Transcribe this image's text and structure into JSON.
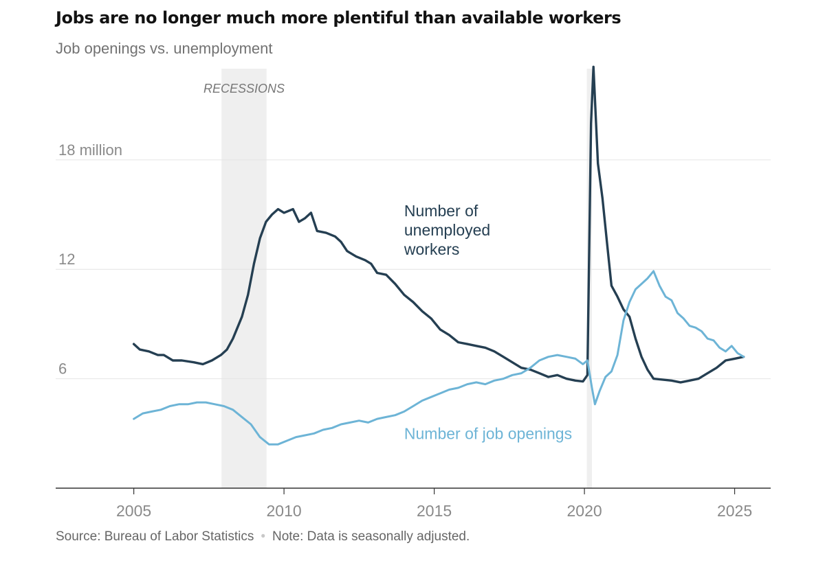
{
  "header": {
    "title": "Jobs are no longer much more plentiful than available workers",
    "subtitle": "Job openings vs. unemployment"
  },
  "footer": {
    "source": "Source: Bureau of Labor Statistics",
    "note": "Note: Data is seasonally adjusted."
  },
  "colors": {
    "unemployed": "#253f52",
    "openings": "#6db4d6",
    "recession": "#efefef",
    "grid": "#e4e4e4",
    "axis": "#333333",
    "tick_text": "#8a8a8a"
  },
  "chart_data": {
    "type": "line",
    "title": "Job openings vs. unemployment",
    "xlabel": "",
    "ylabel": "",
    "xlim": [
      2002.4,
      2026.2
    ],
    "ylim": [
      0,
      23
    ],
    "x_ticks": [
      {
        "value": 2005,
        "label": "2005"
      },
      {
        "value": 2010,
        "label": "2010"
      },
      {
        "value": 2015,
        "label": "2015"
      },
      {
        "value": 2020,
        "label": "2020"
      },
      {
        "value": 2025,
        "label": "2025"
      }
    ],
    "y_ticks": [
      {
        "value": 6,
        "label": "6"
      },
      {
        "value": 12,
        "label": "12"
      },
      {
        "value": 18,
        "label": "18 million"
      }
    ],
    "recession_label": "RECESSIONS",
    "recessions": [
      [
        2007.92,
        2009.42
      ],
      [
        2020.08,
        2020.25
      ]
    ],
    "series": [
      {
        "name": "unemployed",
        "label": [
          "Number of",
          "unemployed",
          "workers"
        ],
        "label_anchor": {
          "x": 2014.0,
          "y": 14.9
        },
        "points": [
          [
            2005.0,
            7.9
          ],
          [
            2005.2,
            7.6
          ],
          [
            2005.5,
            7.5
          ],
          [
            2005.8,
            7.3
          ],
          [
            2006.0,
            7.3
          ],
          [
            2006.3,
            7.0
          ],
          [
            2006.6,
            7.0
          ],
          [
            2007.0,
            6.9
          ],
          [
            2007.3,
            6.8
          ],
          [
            2007.6,
            7.0
          ],
          [
            2007.9,
            7.3
          ],
          [
            2008.1,
            7.6
          ],
          [
            2008.3,
            8.2
          ],
          [
            2008.6,
            9.4
          ],
          [
            2008.8,
            10.6
          ],
          [
            2009.0,
            12.3
          ],
          [
            2009.2,
            13.7
          ],
          [
            2009.4,
            14.6
          ],
          [
            2009.6,
            15.0
          ],
          [
            2009.8,
            15.3
          ],
          [
            2010.0,
            15.1
          ],
          [
            2010.3,
            15.3
          ],
          [
            2010.5,
            14.6
          ],
          [
            2010.7,
            14.8
          ],
          [
            2010.9,
            15.1
          ],
          [
            2011.1,
            14.1
          ],
          [
            2011.4,
            14.0
          ],
          [
            2011.7,
            13.8
          ],
          [
            2011.9,
            13.5
          ],
          [
            2012.1,
            13.0
          ],
          [
            2012.4,
            12.7
          ],
          [
            2012.7,
            12.5
          ],
          [
            2012.9,
            12.3
          ],
          [
            2013.1,
            11.8
          ],
          [
            2013.4,
            11.7
          ],
          [
            2013.7,
            11.2
          ],
          [
            2014.0,
            10.6
          ],
          [
            2014.3,
            10.2
          ],
          [
            2014.6,
            9.7
          ],
          [
            2014.9,
            9.3
          ],
          [
            2015.2,
            8.7
          ],
          [
            2015.5,
            8.4
          ],
          [
            2015.8,
            8.0
          ],
          [
            2016.1,
            7.9
          ],
          [
            2016.4,
            7.8
          ],
          [
            2016.7,
            7.7
          ],
          [
            2017.0,
            7.5
          ],
          [
            2017.3,
            7.2
          ],
          [
            2017.6,
            6.9
          ],
          [
            2017.9,
            6.6
          ],
          [
            2018.2,
            6.5
          ],
          [
            2018.5,
            6.3
          ],
          [
            2018.8,
            6.1
          ],
          [
            2019.1,
            6.2
          ],
          [
            2019.4,
            6.0
          ],
          [
            2019.7,
            5.9
          ],
          [
            2019.95,
            5.85
          ],
          [
            2020.1,
            6.2
          ],
          [
            2020.22,
            20.0
          ],
          [
            2020.3,
            23.1
          ],
          [
            2020.45,
            17.8
          ],
          [
            2020.6,
            15.9
          ],
          [
            2020.75,
            13.5
          ],
          [
            2020.9,
            11.1
          ],
          [
            2021.1,
            10.5
          ],
          [
            2021.3,
            9.8
          ],
          [
            2021.5,
            9.4
          ],
          [
            2021.7,
            8.2
          ],
          [
            2021.9,
            7.2
          ],
          [
            2022.1,
            6.5
          ],
          [
            2022.3,
            6.0
          ],
          [
            2022.6,
            5.95
          ],
          [
            2022.9,
            5.9
          ],
          [
            2023.2,
            5.8
          ],
          [
            2023.5,
            5.9
          ],
          [
            2023.8,
            6.0
          ],
          [
            2024.1,
            6.3
          ],
          [
            2024.4,
            6.6
          ],
          [
            2024.7,
            7.0
          ],
          [
            2025.0,
            7.1
          ],
          [
            2025.3,
            7.2
          ]
        ]
      },
      {
        "name": "openings",
        "label": [
          "Number of job openings"
        ],
        "label_anchor": {
          "x": 2014.0,
          "y": 2.7
        },
        "points": [
          [
            2005.0,
            3.8
          ],
          [
            2005.3,
            4.1
          ],
          [
            2005.6,
            4.2
          ],
          [
            2005.9,
            4.3
          ],
          [
            2006.2,
            4.5
          ],
          [
            2006.5,
            4.6
          ],
          [
            2006.8,
            4.6
          ],
          [
            2007.1,
            4.7
          ],
          [
            2007.4,
            4.7
          ],
          [
            2007.7,
            4.6
          ],
          [
            2008.0,
            4.5
          ],
          [
            2008.3,
            4.3
          ],
          [
            2008.6,
            3.9
          ],
          [
            2008.9,
            3.5
          ],
          [
            2009.2,
            2.8
          ],
          [
            2009.5,
            2.4
          ],
          [
            2009.8,
            2.4
          ],
          [
            2010.1,
            2.6
          ],
          [
            2010.4,
            2.8
          ],
          [
            2010.7,
            2.9
          ],
          [
            2011.0,
            3.0
          ],
          [
            2011.3,
            3.2
          ],
          [
            2011.6,
            3.3
          ],
          [
            2011.9,
            3.5
          ],
          [
            2012.2,
            3.6
          ],
          [
            2012.5,
            3.7
          ],
          [
            2012.8,
            3.6
          ],
          [
            2013.1,
            3.8
          ],
          [
            2013.4,
            3.9
          ],
          [
            2013.7,
            4.0
          ],
          [
            2014.0,
            4.2
          ],
          [
            2014.3,
            4.5
          ],
          [
            2014.6,
            4.8
          ],
          [
            2014.9,
            5.0
          ],
          [
            2015.2,
            5.2
          ],
          [
            2015.5,
            5.4
          ],
          [
            2015.8,
            5.5
          ],
          [
            2016.1,
            5.7
          ],
          [
            2016.4,
            5.8
          ],
          [
            2016.7,
            5.7
          ],
          [
            2017.0,
            5.9
          ],
          [
            2017.3,
            6.0
          ],
          [
            2017.6,
            6.2
          ],
          [
            2017.9,
            6.3
          ],
          [
            2018.2,
            6.6
          ],
          [
            2018.5,
            7.0
          ],
          [
            2018.8,
            7.2
          ],
          [
            2019.1,
            7.3
          ],
          [
            2019.4,
            7.2
          ],
          [
            2019.7,
            7.1
          ],
          [
            2019.95,
            6.8
          ],
          [
            2020.1,
            7.0
          ],
          [
            2020.25,
            5.5
          ],
          [
            2020.35,
            4.6
          ],
          [
            2020.5,
            5.3
          ],
          [
            2020.7,
            6.1
          ],
          [
            2020.9,
            6.4
          ],
          [
            2021.1,
            7.3
          ],
          [
            2021.3,
            9.2
          ],
          [
            2021.5,
            10.2
          ],
          [
            2021.7,
            10.9
          ],
          [
            2021.9,
            11.2
          ],
          [
            2022.1,
            11.5
          ],
          [
            2022.3,
            11.9
          ],
          [
            2022.5,
            11.1
          ],
          [
            2022.7,
            10.5
          ],
          [
            2022.9,
            10.3
          ],
          [
            2023.1,
            9.6
          ],
          [
            2023.3,
            9.3
          ],
          [
            2023.5,
            8.9
          ],
          [
            2023.7,
            8.8
          ],
          [
            2023.9,
            8.6
          ],
          [
            2024.1,
            8.2
          ],
          [
            2024.3,
            8.1
          ],
          [
            2024.5,
            7.7
          ],
          [
            2024.7,
            7.5
          ],
          [
            2024.9,
            7.8
          ],
          [
            2025.1,
            7.4
          ],
          [
            2025.3,
            7.2
          ]
        ]
      }
    ]
  }
}
